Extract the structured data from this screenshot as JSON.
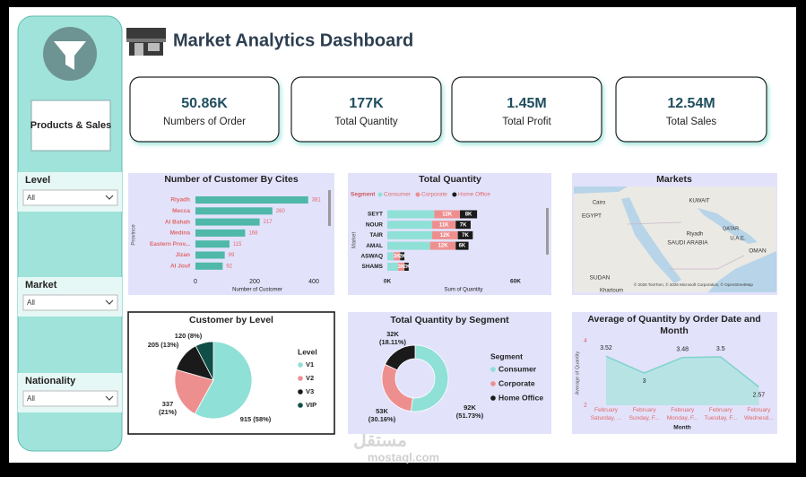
{
  "header": {
    "title": "Market Analytics Dashboard"
  },
  "sidebar": {
    "title": "Products & Sales",
    "slicers": [
      {
        "label": "Level",
        "value": "All"
      },
      {
        "label": "Market",
        "value": "All"
      },
      {
        "label": "Nationality",
        "value": "All"
      }
    ]
  },
  "kpis": [
    {
      "value": "50.86K",
      "label": "Numbers of Order"
    },
    {
      "value": "177K",
      "label": "Total Quantity"
    },
    {
      "value": "1.45M",
      "label": "Total Profit"
    },
    {
      "value": "12.54M",
      "label": "Total Sales"
    }
  ],
  "map": {
    "title": "Markets",
    "labels": [
      "Cairo",
      "KUWAIT",
      "EGYPT",
      "QATAR",
      "Riyadh",
      "SAUDI ARABIA",
      "U.A.E.",
      "OMAN",
      "SUDAN",
      "Khartoum"
    ],
    "attribution": "© 2026 TomTom, © 2026 Microsoft Corporation, © OpenStreetMap"
  },
  "watermark": {
    "logo": "مستقل",
    "site": "mostaql.com"
  },
  "chart_data": [
    {
      "type": "hbar",
      "title": "Number of Customer By Cites",
      "x_label": "Number of Customer",
      "y_label": "Province",
      "categories": [
        "Riyadh",
        "Mecca",
        "Al Bahah",
        "Medina",
        "Eastern Prov...",
        "Jizan",
        "Al Jouf"
      ],
      "values": [
        381,
        260,
        217,
        168,
        115,
        99,
        92
      ],
      "color": "#4fb8a8",
      "xlim": [
        0,
        400
      ],
      "xticks": [
        0,
        200,
        400
      ],
      "grid": false
    },
    {
      "type": "stacked-hbar",
      "title": "Total Quantity",
      "legend_title": "Segment",
      "x_label": "Sum of Quantity",
      "y_label": "Market",
      "categories": [
        "SEYT",
        "NOUR",
        "TAIR",
        "AMAL",
        "ASWAQ",
        "SHAMS"
      ],
      "series": [
        {
          "name": "Consumer",
          "color": "#8fe0d6",
          "values": [
            22000,
            21000,
            21000,
            20000,
            3000,
            5000
          ]
        },
        {
          "name": "Corporate",
          "color": "#ee8f8f",
          "values": [
            12000,
            11000,
            12000,
            12000,
            3000,
            3000
          ],
          "value_labels": [
            "12K",
            "11K",
            "12K",
            "12K",
            "3K",
            "3K"
          ]
        },
        {
          "name": "Home Office",
          "color": "#1a1a1a",
          "values": [
            8000,
            7000,
            7000,
            6000,
            2000,
            2000
          ],
          "value_labels": [
            "8K",
            "7K",
            "7K",
            "6K",
            "2K",
            "2K"
          ]
        }
      ],
      "xlim": [
        0,
        60000
      ],
      "xticks": [
        {
          "value": 0,
          "label": "0K"
        },
        {
          "value": 60000,
          "label": "60K"
        }
      ],
      "grid": false
    },
    {
      "type": "pie",
      "title": "Customer by Level",
      "legend_title": "Level",
      "categories": [
        "V1",
        "V2",
        "V3",
        "VIP"
      ],
      "values": [
        915,
        337,
        205,
        120
      ],
      "value_labels": [
        "915 (58%)",
        "337 (21%)",
        "205 (13%)",
        "120 (8%)"
      ],
      "colors": [
        "#8fe0d6",
        "#ee8f8f",
        "#1a1a1a",
        "#0f4f47"
      ]
    },
    {
      "type": "donut",
      "title": "Total Quantity by Segment",
      "legend_title": "Segment",
      "categories": [
        "Consumer",
        "Corporate",
        "Home Office"
      ],
      "values": [
        92000,
        53000,
        32000
      ],
      "value_labels": [
        "92K (51.73%)",
        "53K (30.16%)",
        "32K (18.11%)"
      ],
      "colors": [
        "#8fe0d6",
        "#ee8f8f",
        "#1a1a1a"
      ]
    },
    {
      "type": "area",
      "title": "Average of Quantity by Order Date and Month",
      "x_label": "Month",
      "y_label": "Average of Quantity",
      "categories": [
        "February Saturday, ...",
        "February Sunday, F...",
        "February Monday, F...",
        "February Tuesday, F...",
        "February Wednesd..."
      ],
      "values": [
        3.52,
        3.0,
        3.48,
        3.5,
        2.57
      ],
      "color": "#a9e3de",
      "ylim": [
        2,
        4
      ],
      "yticks": [
        4,
        2
      ],
      "grid": false
    }
  ]
}
